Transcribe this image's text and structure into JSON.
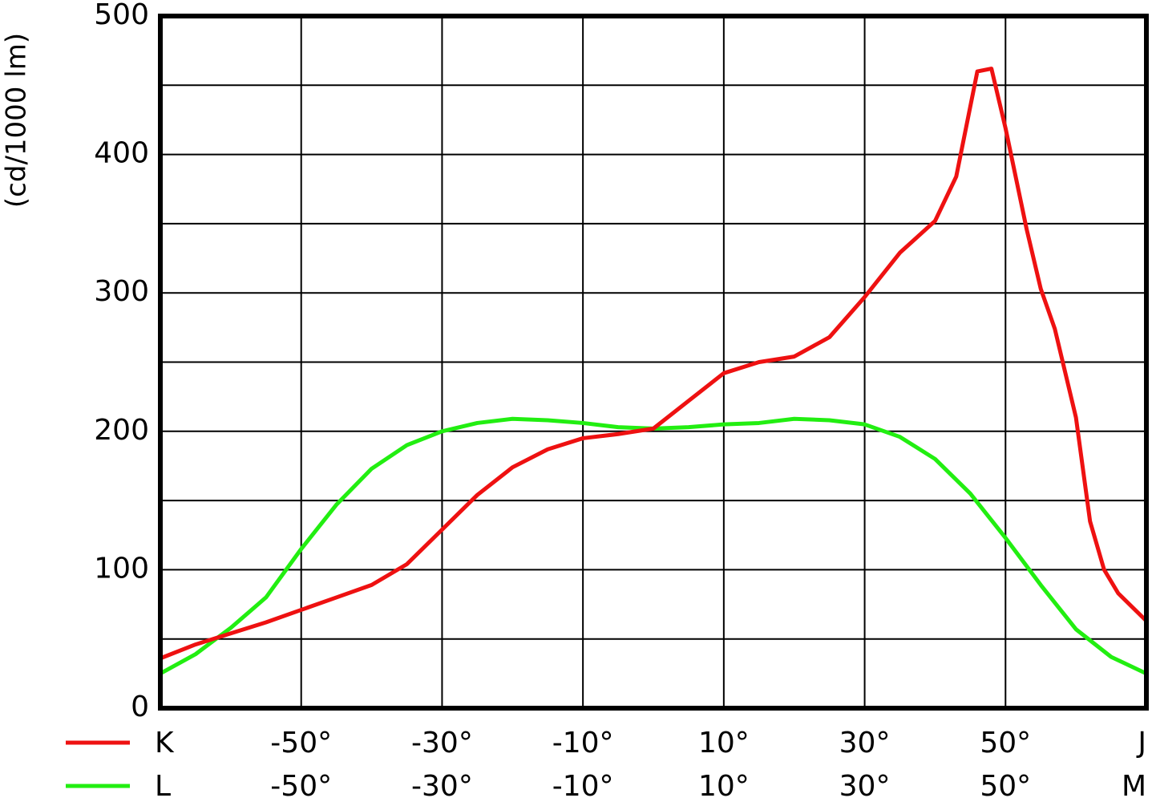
{
  "chart_data": {
    "type": "line",
    "ylabel": "(cd/1000 lm)",
    "xlim": [
      -70,
      70
    ],
    "ylim": [
      0,
      500
    ],
    "yticks": [
      0,
      100,
      200,
      300,
      400,
      500
    ],
    "yminor": [
      50,
      150,
      250,
      350,
      450
    ],
    "grid": true,
    "series": [
      {
        "name": "K",
        "color": "#ee1111",
        "x": [
          -70,
          -65,
          -60,
          -55,
          -50,
          -45,
          -40,
          -35,
          -30,
          -25,
          -20,
          -15,
          -10,
          -5,
          0,
          5,
          10,
          15,
          20,
          25,
          30,
          35,
          40,
          43,
          46,
          48,
          50,
          53,
          55,
          57,
          60,
          62,
          64,
          66,
          70
        ],
        "values": [
          36,
          46,
          54,
          62,
          71,
          80,
          89,
          104,
          129,
          154,
          174,
          187,
          195,
          198,
          202,
          222,
          242,
          250,
          254,
          268,
          297,
          329,
          352,
          384,
          460,
          462,
          419,
          346,
          303,
          274,
          210,
          135,
          100,
          83,
          63
        ],
        "xticks": [
          {
            "value": -50,
            "label": "-50°"
          },
          {
            "value": -30,
            "label": "-30°"
          },
          {
            "value": -10,
            "label": "-10°"
          },
          {
            "value": 10,
            "label": "10°"
          },
          {
            "value": 30,
            "label": "30°"
          },
          {
            "value": 50,
            "label": "50°"
          },
          {
            "value": 70,
            "label": "J"
          }
        ]
      },
      {
        "name": "L",
        "color": "#22ee11",
        "x": [
          -70,
          -65,
          -60,
          -55,
          -50,
          -45,
          -40,
          -35,
          -30,
          -25,
          -20,
          -15,
          -10,
          -5,
          0,
          5,
          10,
          15,
          20,
          25,
          30,
          35,
          40,
          45,
          50,
          55,
          60,
          65,
          70
        ],
        "values": [
          25,
          39,
          58,
          80,
          115,
          147,
          173,
          190,
          200,
          206,
          209,
          208,
          206,
          203,
          202,
          203,
          205,
          206,
          209,
          208,
          205,
          196,
          180,
          155,
          123,
          89,
          57,
          37,
          25
        ],
        "xticks": [
          {
            "value": -50,
            "label": "-50°"
          },
          {
            "value": -30,
            "label": "-30°"
          },
          {
            "value": -10,
            "label": "-10°"
          },
          {
            "value": 10,
            "label": "10°"
          },
          {
            "value": 30,
            "label": "30°"
          },
          {
            "value": 50,
            "label": "50°"
          },
          {
            "value": 70,
            "label": "M"
          }
        ]
      }
    ]
  }
}
